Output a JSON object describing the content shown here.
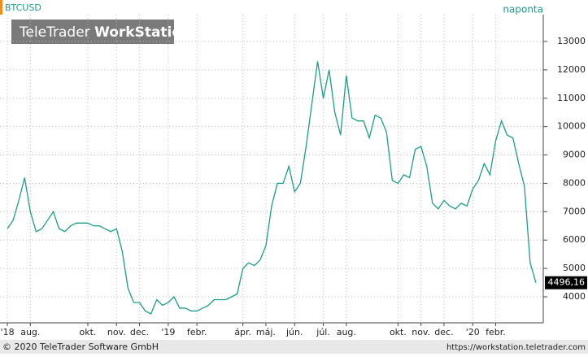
{
  "chart_data": {
    "type": "line",
    "title": "BTCUSD",
    "subtitle": "naponta",
    "logo": {
      "light": "TeleTrader",
      "bold": "WorkStation"
    },
    "footer_left": "© 2020 TeleTrader Software GmbH",
    "footer_right": "https://workstation.teletrader.com",
    "x": [
      0,
      1,
      2,
      3,
      4,
      5,
      6,
      7,
      8,
      9,
      10,
      11,
      12,
      13,
      14,
      15,
      16,
      17,
      18,
      19,
      20,
      21,
      22,
      23,
      24,
      25,
      26,
      27,
      28,
      29,
      30,
      31,
      32,
      33,
      34,
      35,
      36,
      37,
      38,
      39,
      40,
      41,
      42,
      43,
      44,
      45,
      46,
      47,
      48,
      49,
      50,
      51,
      52,
      53,
      54,
      55,
      56,
      57,
      58,
      59,
      60,
      61,
      62,
      63,
      64,
      65,
      66,
      67,
      68,
      69,
      70,
      71,
      72,
      73,
      74,
      75,
      76,
      77,
      78,
      79,
      80,
      81,
      82,
      83,
      84,
      85,
      86,
      87,
      88,
      89,
      90,
      91,
      92
    ],
    "series": [
      {
        "name": "BTCUSD",
        "color": "#1a9e8a",
        "values": [
          6400,
          6700,
          7400,
          8200,
          7000,
          6300,
          6400,
          6700,
          7000,
          6400,
          6300,
          6500,
          6600,
          6600,
          6600,
          6500,
          6500,
          6400,
          6300,
          6400,
          5600,
          4300,
          3800,
          3800,
          3500,
          3400,
          3900,
          3700,
          3800,
          4000,
          3600,
          3600,
          3500,
          3500,
          3600,
          3700,
          3900,
          3900,
          3900,
          4000,
          4100,
          5000,
          5200,
          5100,
          5300,
          5800,
          7200,
          8000,
          8000,
          8600,
          7700,
          8000,
          9300,
          10800,
          12300,
          11000,
          12000,
          10500,
          9700,
          11800,
          10300,
          10200,
          10200,
          9600,
          10400,
          10300,
          9800,
          8100,
          8000,
          8300,
          8200,
          9200,
          9300,
          8600,
          7300,
          7100,
          7400,
          7200,
          7100,
          7300,
          7200,
          7800,
          8100,
          8700,
          8300,
          9500,
          10200,
          9700,
          9600,
          8700,
          7900,
          5200,
          4496.16
        ]
      }
    ],
    "last_price": {
      "value": 4496.16,
      "label": "4496,16"
    },
    "xlim": [
      -1,
      93
    ],
    "xticks": [
      {
        "value": 0,
        "label": "'18"
      },
      {
        "value": 4,
        "label": "aug."
      },
      {
        "value": 14,
        "label": "okt."
      },
      {
        "value": 19,
        "label": "nov."
      },
      {
        "value": 23,
        "label": "dec."
      },
      {
        "value": 28,
        "label": "'19"
      },
      {
        "value": 33,
        "label": "febr."
      },
      {
        "value": 41,
        "label": "ápr."
      },
      {
        "value": 45,
        "label": "máj."
      },
      {
        "value": 50,
        "label": "jún."
      },
      {
        "value": 55,
        "label": "júl."
      },
      {
        "value": 59,
        "label": "aug."
      },
      {
        "value": 68,
        "label": "okt."
      },
      {
        "value": 72,
        "label": "nov."
      },
      {
        "value": 76,
        "label": "dec."
      },
      {
        "value": 81,
        "label": "'20"
      },
      {
        "value": 85,
        "label": "febr."
      }
    ],
    "ylim": [
      3083,
      13946
    ],
    "yticks": [
      4000,
      5000,
      6000,
      7000,
      8000,
      9000,
      10000,
      11000,
      12000,
      13000
    ],
    "grid": true
  }
}
